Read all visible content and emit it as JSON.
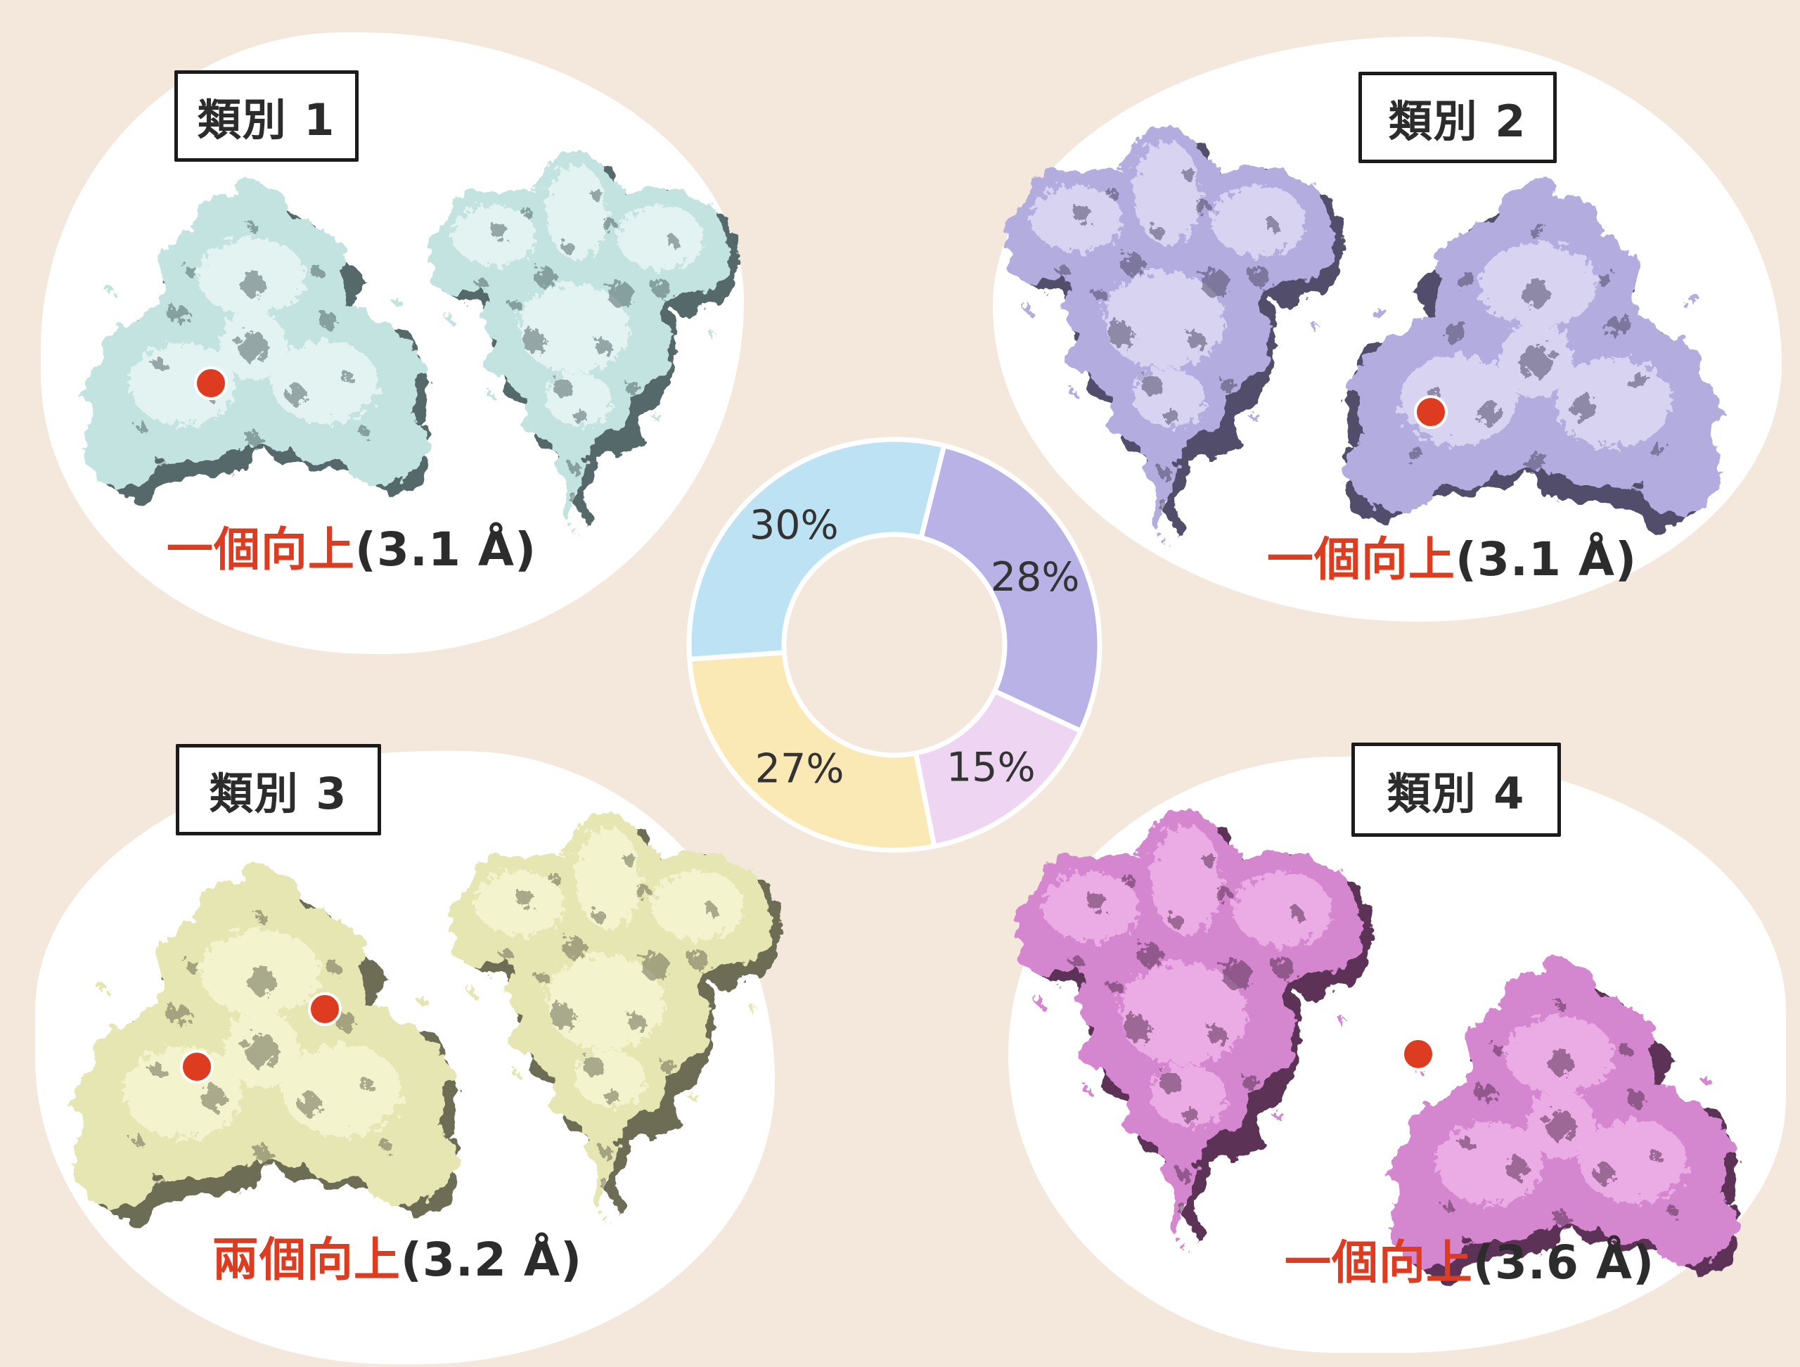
{
  "colors": {
    "background": "#f4e8dd",
    "panel": "#ffffff",
    "accent_red": "#dd3c20",
    "text_dark": "#2c2c2c",
    "label_border": "#1b1b1b"
  },
  "classes": [
    {
      "label": "類別 1",
      "status": "一個向上",
      "resolution": "(3.1 Å)",
      "marker_dots": 1,
      "map_palette": {
        "highlight": "#e7f5f3",
        "mid": "#c3e3e1",
        "shadow": "#55696a"
      }
    },
    {
      "label": "類別 2",
      "status": "一個向上",
      "resolution": "(3.1 Å)",
      "marker_dots": 1,
      "map_palette": {
        "highlight": "#dcd8f3",
        "mid": "#b3acdf",
        "shadow": "#514e6b"
      }
    },
    {
      "label": "類別 3",
      "status": "兩個向上",
      "resolution": "(3.2 Å)",
      "marker_dots": 2,
      "map_palette": {
        "highlight": "#f5f5d2",
        "mid": "#e6e6b3",
        "shadow": "#6d6d55"
      }
    },
    {
      "label": "類別 4",
      "status": "一個向上",
      "resolution": "(3.6 Å)",
      "marker_dots": 1,
      "map_palette": {
        "highlight": "#eeafe7",
        "mid": "#d487ce",
        "shadow": "#5c3156"
      }
    }
  ],
  "chart_data": {
    "type": "pie",
    "subtype": "donut",
    "start_angle_deg": 14,
    "label_color": "#333333",
    "slice_gap_color": "#ffffff",
    "slices": [
      {
        "label": "28%",
        "value": 28,
        "color": "#b8b2e7",
        "linked_class": "類別 2"
      },
      {
        "label": "15%",
        "value": 15,
        "color": "#eed6f3",
        "linked_class": "類別 4"
      },
      {
        "label": "27%",
        "value": 27,
        "color": "#fae9b4",
        "linked_class": "類別 3"
      },
      {
        "label": "30%",
        "value": 30,
        "color": "#bce2f3",
        "linked_class": "類別 1"
      }
    ]
  }
}
